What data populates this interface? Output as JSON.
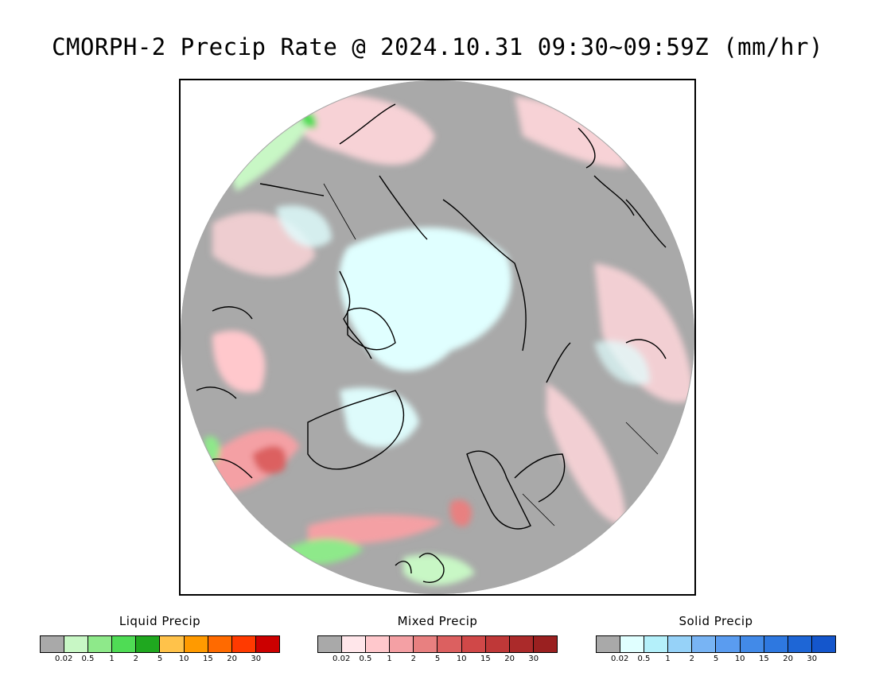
{
  "title": "CMORPH-2 Precip Rate @ 2024.10.31 09:30~09:59Z (mm/hr)",
  "legends": [
    {
      "title": "Liquid Precip",
      "colors": [
        "#a9a9a9",
        "#c8f7c5",
        "#8ee98a",
        "#4fdc55",
        "#1fa81f",
        "#ffc24a",
        "#ff9a00",
        "#ff6a00",
        "#ff3a00",
        "#cc0000"
      ],
      "ticks": [
        "0.02",
        "0.5",
        "1",
        "2",
        "5",
        "10",
        "15",
        "20",
        "30"
      ]
    },
    {
      "title": "Mixed Precip",
      "colors": [
        "#a9a9a9",
        "#ffe6ea",
        "#ffc8cc",
        "#f4a0a4",
        "#e88080",
        "#dc6060",
        "#d04848",
        "#bf3838",
        "#ab2a2a",
        "#9a2020"
      ],
      "ticks": [
        "0.02",
        "0.5",
        "1",
        "2",
        "5",
        "10",
        "15",
        "20",
        "30"
      ]
    },
    {
      "title": "Solid Precip",
      "colors": [
        "#a9a9a9",
        "#e0ffff",
        "#b4f0fa",
        "#96d2f8",
        "#78b4f4",
        "#5a9cf0",
        "#428ae8",
        "#2e78e0",
        "#1e66d6",
        "#1456cc"
      ],
      "ticks": [
        "0.02",
        "0.5",
        "1",
        "2",
        "5",
        "10",
        "15",
        "20",
        "30"
      ]
    }
  ],
  "map": {
    "projection": "north-polar-stereographic",
    "background_color": "#a9a9a9",
    "coastline_color": "#000000"
  }
}
